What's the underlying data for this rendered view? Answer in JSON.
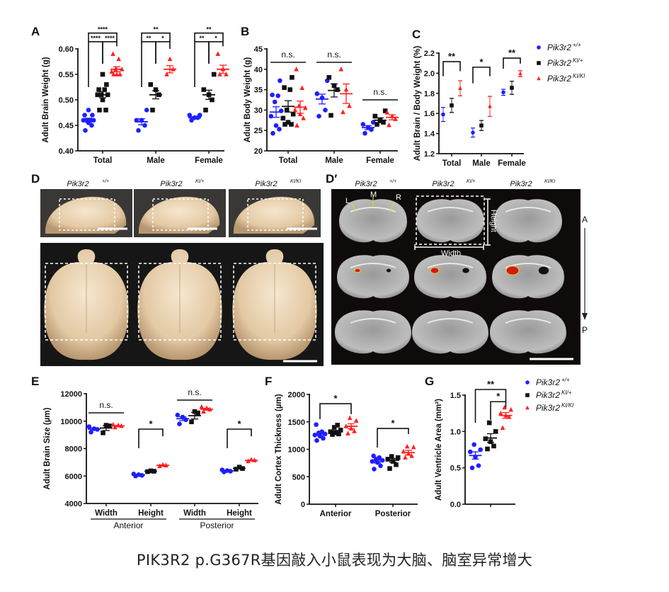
{
  "caption": "PIK3R2 p.G367R基因敲入小鼠表现为大脑、脑室异常增大",
  "panel_letters": {
    "A": "A",
    "B": "B",
    "C": "C",
    "D": "D",
    "Dp": "D′",
    "E": "E",
    "F": "F",
    "G": "G"
  },
  "genotypes": [
    {
      "base": "Pik3r2",
      "sup": "+/+",
      "color": "#1f1fff",
      "marker": "circle"
    },
    {
      "base": "Pik3r2",
      "sup": "KI/+",
      "color": "#111111",
      "marker": "square"
    },
    {
      "base": "Pik3r2",
      "sup": "KI/KI",
      "color": "#ff2020",
      "marker": "triangle"
    }
  ],
  "photo_D": {
    "labels": [
      "+/+",
      "KI/+",
      "KI/KI"
    ],
    "base": "Pik3r2"
  },
  "photo_Dp": {
    "labels": [
      "+/+",
      "KI/+",
      "KI/KI"
    ],
    "base": "Pik3r2",
    "L": "L",
    "M": "M",
    "R": "R",
    "width": "Width",
    "height": "Height",
    "A": "A",
    "P": "P"
  },
  "chart_data": [
    {
      "id": "A",
      "type": "scatter",
      "ylabel": "Adult Brain Weight (g)",
      "ylim": [
        0.4,
        0.6
      ],
      "yticks": [
        0.4,
        0.45,
        0.5,
        0.55,
        0.6
      ],
      "ytick_labels": [
        "0.40",
        "0.45",
        "0.50",
        "0.55",
        "0.60"
      ],
      "categories": [
        "Total",
        "Male",
        "Female"
      ],
      "series": [
        {
          "name": "+/+",
          "groups": [
            {
              "points": [
                0.44,
                0.45,
                0.455,
                0.46,
                0.46,
                0.46,
                0.46,
                0.47,
                0.47,
                0.48
              ],
              "mean": 0.46,
              "sem": 0.004
            },
            {
              "points": [
                0.44,
                0.45,
                0.46,
                0.46,
                0.48
              ],
              "mean": 0.457,
              "sem": 0.006
            },
            {
              "points": [
                0.46,
                0.465,
                0.465,
                0.47,
                0.47
              ],
              "mean": 0.465,
              "sem": 0.002
            }
          ]
        },
        {
          "name": "KI/+",
          "groups": [
            {
              "points": [
                0.48,
                0.48,
                0.5,
                0.51,
                0.51,
                0.51,
                0.52,
                0.52,
                0.53,
                0.55
              ],
              "mean": 0.51,
              "sem": 0.006
            },
            {
              "points": [
                0.48,
                0.51,
                0.52,
                0.53
              ],
              "mean": 0.51,
              "sem": 0.008
            },
            {
              "points": [
                0.48,
                0.5,
                0.51,
                0.52,
                0.55
              ],
              "mean": 0.51,
              "sem": 0.009
            }
          ]
        },
        {
          "name": "KI/KI",
          "groups": [
            {
              "points": [
                0.55,
                0.55,
                0.55,
                0.555,
                0.56,
                0.56,
                0.58,
                0.59
              ],
              "mean": 0.56,
              "sem": 0.005
            },
            {
              "points": [
                0.55,
                0.56,
                0.58
              ],
              "mean": 0.56,
              "sem": 0.007
            },
            {
              "points": [
                0.55,
                0.55,
                0.56,
                0.59
              ],
              "mean": 0.56,
              "sem": 0.008
            }
          ]
        }
      ],
      "brackets": [
        {
          "cat": 0,
          "from": 0,
          "to": 2,
          "y": 0.631,
          "yl": 0.614,
          "yr": 0.614,
          "label": "****",
          "small": true
        },
        {
          "cat": 0,
          "from": 0,
          "to": 1,
          "y": 0.614,
          "yl": 0.525,
          "yr": 0.571,
          "label": "****",
          "small": true
        },
        {
          "cat": 0,
          "from": 1,
          "to": 2,
          "y": 0.614,
          "yl": 0.571,
          "yr": 0.605,
          "label": "****",
          "small": true
        },
        {
          "cat": 1,
          "from": 0,
          "to": 2,
          "y": 0.631,
          "yl": 0.614,
          "yr": 0.614,
          "label": "**",
          "small": true
        },
        {
          "cat": 1,
          "from": 0,
          "to": 1,
          "y": 0.614,
          "yl": 0.525,
          "yr": 0.571,
          "label": "**",
          "small": true
        },
        {
          "cat": 1,
          "from": 1,
          "to": 2,
          "y": 0.614,
          "yl": 0.571,
          "yr": 0.6,
          "label": "*",
          "small": true
        },
        {
          "cat": 2,
          "from": 0,
          "to": 2,
          "y": 0.631,
          "yl": 0.614,
          "yr": 0.614,
          "label": "**",
          "small": true
        },
        {
          "cat": 2,
          "from": 0,
          "to": 1,
          "y": 0.614,
          "yl": 0.525,
          "yr": 0.571,
          "label": "**",
          "small": true
        },
        {
          "cat": 2,
          "from": 1,
          "to": 2,
          "y": 0.614,
          "yl": 0.571,
          "yr": 0.605,
          "label": "*",
          "small": true
        }
      ]
    },
    {
      "id": "B",
      "type": "scatter",
      "ylabel": "Adult Body Weight (g)",
      "ylim": [
        20,
        45
      ],
      "yticks": [
        20,
        25,
        30,
        35,
        40,
        45
      ],
      "ytick_labels": [
        "20",
        "25",
        "30",
        "35",
        "40",
        "45"
      ],
      "categories": [
        "Total",
        "Male",
        "Female"
      ],
      "series": [
        {
          "name": "+/+",
          "groups": [
            {
              "points": [
                24.3,
                25.3,
                26.2,
                28.5,
                29.8,
                32,
                33.5,
                33.7,
                37.2
              ],
              "mean": 29.5,
              "sem": 1.3
            },
            {
              "points": [
                28.5,
                30,
                33,
                34,
                37.2
              ],
              "mean": 32.7,
              "sem": 1.2
            },
            {
              "points": [
                24.3,
                25.2,
                25.7,
                26.5,
                27
              ],
              "mean": 25.7,
              "sem": 0.5
            }
          ]
        },
        {
          "name": "KI/+",
          "groups": [
            {
              "points": [
                26.5,
                26.5,
                27,
                28,
                29,
                30,
                35,
                35.5,
                38
              ],
              "mean": 30.9,
              "sem": 1.4
            },
            {
              "points": [
                28.7,
                35,
                36,
                38
              ],
              "mean": 34.8,
              "sem": 1.6
            },
            {
              "points": [
                26.5,
                27,
                27.5,
                28.5,
                29.8
              ],
              "mean": 27.5,
              "sem": 0.6
            }
          ]
        },
        {
          "name": "KI/KI",
          "groups": [
            {
              "points": [
                26.2,
                28,
                29,
                30,
                30.5,
                31,
                35.4,
                40
              ],
              "mean": 30.7,
              "sem": 1.5
            },
            {
              "points": [
                29.5,
                31,
                35,
                40
              ],
              "mean": 34,
              "sem": 2.4
            },
            {
              "points": [
                26.3,
                27.8,
                28.5,
                29.4
              ],
              "mean": 28.2,
              "sem": 0.6
            }
          ]
        }
      ],
      "ns_lines": [
        {
          "cat": 0,
          "y": 41.7,
          "label": "n.s."
        },
        {
          "cat": 1,
          "y": 41.7,
          "label": "n.s."
        },
        {
          "cat": 2,
          "y": 32.5,
          "label": "n.s."
        }
      ]
    },
    {
      "id": "C",
      "type": "scatter",
      "ylabel": "Adult Brain / Body Weight (%)",
      "ylim": [
        1.2,
        2.2
      ],
      "yticks": [
        1.2,
        1.4,
        1.6,
        1.8,
        2.0,
        2.2
      ],
      "ytick_labels": [
        "1.2",
        "1.4",
        "1.6",
        "1.8",
        "2.0",
        "2.2"
      ],
      "categories": [
        "Total",
        "Male",
        "Female"
      ],
      "mean_only": true,
      "series": [
        {
          "name": "+/+",
          "groups": [
            {
              "mean": 1.59,
              "sem": 0.07
            },
            {
              "mean": 1.41,
              "sem": 0.045
            },
            {
              "mean": 1.81,
              "sem": 0.03
            }
          ]
        },
        {
          "name": "KI/+",
          "groups": [
            {
              "mean": 1.68,
              "sem": 0.07
            },
            {
              "mean": 1.48,
              "sem": 0.05
            },
            {
              "mean": 1.855,
              "sem": 0.065
            }
          ]
        },
        {
          "name": "KI/KI",
          "groups": [
            {
              "mean": 1.85,
              "sem": 0.075
            },
            {
              "mean": 1.67,
              "sem": 0.1
            },
            {
              "mean": 1.995,
              "sem": 0.03
            }
          ]
        }
      ],
      "brackets": [
        {
          "cat": 0,
          "from": 0,
          "to": 2,
          "y": 2.115,
          "yl": 1.97,
          "yr": 2.02,
          "label": "**"
        },
        {
          "cat": 1,
          "from": 0,
          "to": 2,
          "y": 2.06,
          "yl": 1.9,
          "yr": 1.97,
          "label": "*"
        },
        {
          "cat": 2,
          "from": 0,
          "to": 2,
          "y": 2.15,
          "yl": 2.045,
          "yr": 2.095,
          "label": "**"
        }
      ]
    },
    {
      "id": "E",
      "type": "scatter",
      "ylabel": "Adult Brain Size  (µm)",
      "ylim": [
        4000,
        12000
      ],
      "yticks": [
        4000,
        6000,
        8000,
        10000,
        12000
      ],
      "ytick_labels": [
        "4000",
        "6000",
        "8000",
        "10000",
        "12000"
      ],
      "categories": [
        "Width",
        "Height",
        "Width",
        "Height"
      ],
      "group_labels": [
        {
          "label": "Anterior",
          "cats": [
            0,
            1
          ]
        },
        {
          "label": "Posterior",
          "cats": [
            2,
            3
          ]
        }
      ],
      "series": [
        {
          "name": "+/+",
          "groups": [
            {
              "points": [
                9200,
                9400,
                9450,
                9600
              ],
              "mean": 9420,
              "sem": 90
            },
            {
              "points": [
                6000,
                6050,
                6100,
                6150
              ],
              "mean": 6080,
              "sem": 30
            },
            {
              "points": [
                9800,
                10100,
                10300,
                10450
              ],
              "mean": 10180,
              "sem": 140
            },
            {
              "points": [
                6300,
                6350,
                6400,
                6450
              ],
              "mean": 6380,
              "sem": 30
            }
          ]
        },
        {
          "name": "KI/+",
          "groups": [
            {
              "points": [
                9150,
                9650,
                9700
              ],
              "mean": 9500,
              "sem": 180
            },
            {
              "points": [
                6320,
                6350,
                6380
              ],
              "mean": 6350,
              "sem": 20
            },
            {
              "points": [
                9950,
                10600,
                10700
              ],
              "mean": 10400,
              "sem": 240
            },
            {
              "points": [
                6500,
                6550,
                6650
              ],
              "mean": 6560,
              "sem": 50
            }
          ]
        },
        {
          "name": "KI/KI",
          "groups": [
            {
              "points": [
                9550,
                9650,
                9700,
                9750
              ],
              "mean": 9650,
              "sem": 40
            },
            {
              "points": [
                6720,
                6780,
                6820
              ],
              "mean": 6780,
              "sem": 30
            },
            {
              "points": [
                10700,
                10850,
                10950,
                11050
              ],
              "mean": 10870,
              "sem": 70
            },
            {
              "points": [
                7080,
                7150,
                7200
              ],
              "mean": 7140,
              "sem": 35
            }
          ]
        }
      ],
      "ns_lines": [
        {
          "cat": 0,
          "y": 10606,
          "label": "n.s."
        },
        {
          "cat": 2,
          "y": 11535,
          "label": "n.s."
        }
      ],
      "brackets": [
        {
          "cat": 1,
          "from": 0,
          "to": 2,
          "y": 9420,
          "yl": 8026,
          "yr": 8900,
          "label": "*"
        },
        {
          "cat": 3,
          "from": 0,
          "to": 2,
          "y": 9420,
          "yl": 8026,
          "yr": 8900,
          "label": "*"
        }
      ]
    },
    {
      "id": "F",
      "type": "scatter",
      "ylabel": "Adult Cortex Thickness (µm)",
      "ylim": [
        0,
        2000
      ],
      "yticks": [
        0,
        500,
        1000,
        1500,
        2000
      ],
      "ytick_labels": [
        "0",
        "500",
        "1000",
        "1500",
        "2000"
      ],
      "categories": [
        "Anterior",
        "Posterior"
      ],
      "series": [
        {
          "name": "+/+",
          "groups": [
            {
              "points": [
                1160,
                1200,
                1240,
                1260,
                1280,
                1300,
                1320,
                1450
              ],
              "mean": 1280,
              "sem": 30
            },
            {
              "points": [
                640,
                700,
                760,
                780,
                800,
                820,
                850,
                880
              ],
              "mean": 780,
              "sem": 28
            }
          ]
        },
        {
          "name": "KI/+",
          "groups": [
            {
              "points": [
                1270,
                1280,
                1300,
                1320,
                1350,
                1400,
                1440
              ],
              "mean": 1320,
              "sem": 25
            },
            {
              "points": [
                650,
                720,
                780,
                820,
                850,
                870
              ],
              "mean": 800,
              "sem": 35
            }
          ]
        },
        {
          "name": "KI/KI",
          "groups": [
            {
              "points": [
                1290,
                1330,
                1380,
                1420,
                1520,
                1570
              ],
              "mean": 1420,
              "sem": 45
            },
            {
              "points": [
                850,
                880,
                920,
                960,
                1040,
                1050
              ],
              "mean": 940,
              "sem": 40
            }
          ]
        }
      ],
      "brackets": [
        {
          "cat": 0,
          "from": 0,
          "to": 2,
          "y": 1832,
          "yl": 1550,
          "yr": 1640,
          "label": "*"
        },
        {
          "cat": 1,
          "from": 0,
          "to": 2,
          "y": 1380,
          "yl": 1032,
          "yr": 1277,
          "label": "*"
        }
      ]
    },
    {
      "id": "G",
      "type": "scatter",
      "ylabel": "Adult Ventricle Area (mm²)",
      "ylim": [
        0,
        1.5
      ],
      "yticks": [
        0,
        0.5,
        1.0,
        1.5
      ],
      "ytick_labels": [
        "0.0",
        "0.5",
        "1.0",
        "1.5"
      ],
      "categories": [
        ""
      ],
      "series": [
        {
          "name": "+/+",
          "groups": [
            {
              "points": [
                0.5,
                0.53,
                0.65,
                0.72,
                0.75,
                0.82
              ],
              "mean": 0.67,
              "sem": 0.05
            }
          ]
        },
        {
          "name": "KI/+",
          "groups": [
            {
              "points": [
                0.76,
                0.8,
                0.86,
                0.9,
                1.0,
                1.12
              ],
              "mean": 0.91,
              "sem": 0.06
            }
          ]
        },
        {
          "name": "KI/KI",
          "groups": [
            {
              "points": [
                1.05,
                1.2,
                1.22,
                1.25,
                1.3,
                1.33
              ],
              "mean": 1.22,
              "sem": 0.04
            }
          ]
        }
      ],
      "brackets": [
        {
          "cat": 0,
          "from": 0,
          "to": 2,
          "y": 1.578,
          "yl": 1.12,
          "yr": 1.41,
          "label": "**"
        },
        {
          "cat": 0,
          "from": 1,
          "to": 2,
          "y": 1.41,
          "yl": 1.16,
          "yr": 1.33,
          "label": "*"
        }
      ]
    }
  ]
}
